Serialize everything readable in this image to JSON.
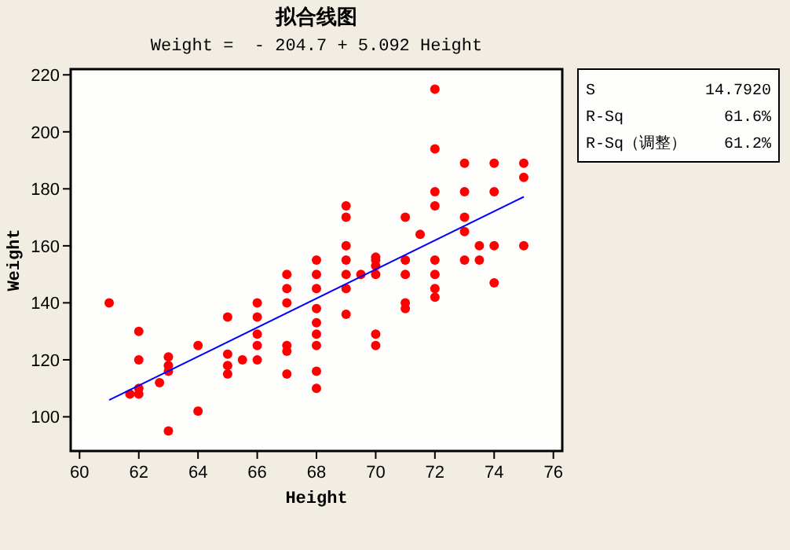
{
  "chart_data": {
    "type": "scatter",
    "title": "拟合线图",
    "subtitle": "Weight =  - 204.7 + 5.092 Height",
    "xlabel": "Height",
    "ylabel": "Weight",
    "xlim": [
      59.7,
      76.3
    ],
    "xticks": [
      60,
      62,
      64,
      66,
      68,
      70,
      72,
      74,
      76
    ],
    "ylim": [
      88,
      222
    ],
    "yticks": [
      100,
      120,
      140,
      160,
      180,
      200,
      220
    ],
    "grid": false,
    "annotations": [
      "S 14.7920",
      "R-Sq 61.6%",
      "R-Sq（调整） 61.2%"
    ],
    "series": [
      {
        "marker": "circle",
        "color": "#ff0000",
        "x": [
          61,
          61.7,
          62,
          62,
          62,
          62,
          62.7,
          63,
          63,
          63,
          63,
          64,
          64,
          65,
          65,
          65,
          65,
          65.5,
          66,
          66,
          66,
          66,
          66,
          67,
          67,
          67,
          67,
          67,
          67,
          68,
          68,
          68,
          68,
          68,
          68,
          68,
          68,
          68,
          69,
          69,
          69,
          69,
          69,
          69,
          69,
          69.5,
          70,
          70,
          70,
          70,
          70,
          70,
          71,
          71,
          71,
          71,
          71,
          71.5,
          72,
          72,
          72,
          72,
          72,
          72,
          72,
          72,
          73,
          73,
          73,
          73,
          73,
          73.5,
          73.5,
          74,
          74,
          74,
          74,
          75,
          75,
          75
        ],
        "values": [
          140,
          108,
          108,
          110,
          130,
          120,
          112,
          121,
          118,
          116,
          95,
          125,
          102,
          135,
          122,
          118,
          115,
          120,
          140,
          135,
          129,
          125,
          120,
          150,
          145,
          140,
          125,
          123,
          115,
          155,
          150,
          145,
          138,
          133,
          129,
          125,
          116,
          110,
          174,
          170,
          160,
          155,
          150,
          145,
          136,
          150,
          156,
          155,
          153,
          150,
          129,
          125,
          170,
          155,
          150,
          140,
          138,
          164,
          215,
          194,
          179,
          174,
          155,
          150,
          145,
          142,
          189,
          179,
          170,
          165,
          155,
          160,
          155,
          189,
          179,
          160,
          147,
          189,
          184,
          160
        ]
      },
      {
        "type": "line",
        "color": "#0000ff",
        "x": [
          61,
          75
        ],
        "values": [
          105.9,
          177.2
        ]
      }
    ]
  }
}
